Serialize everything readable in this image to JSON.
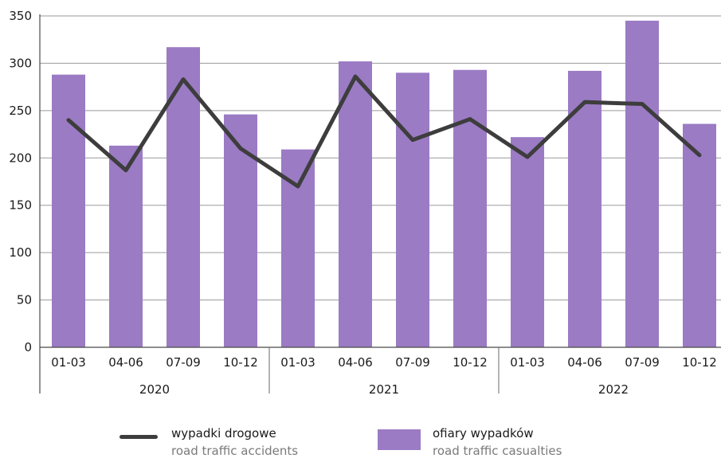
{
  "chart_data": {
    "type": "bar",
    "categories": [
      "01-03",
      "04-06",
      "07-09",
      "10-12",
      "01-03",
      "04-06",
      "07-09",
      "10-12",
      "01-03",
      "04-06",
      "07-09",
      "10-12"
    ],
    "groups": [
      {
        "label": "2020",
        "count": 4
      },
      {
        "label": "2021",
        "count": 4
      },
      {
        "label": "2022",
        "count": 4
      }
    ],
    "series": [
      {
        "name": "ofiary wypadków",
        "name_en": "road traffic casualties",
        "kind": "bar",
        "color": "#9b7bc4",
        "values": [
          288,
          213,
          317,
          246,
          209,
          302,
          290,
          293,
          222,
          292,
          345,
          236
        ]
      },
      {
        "name": "wypadki drogowe",
        "name_en": "road traffic accidents",
        "kind": "line",
        "color": "#3d3d3d",
        "values": [
          240,
          187,
          283,
          210,
          170,
          286,
          219,
          241,
          201,
          259,
          257,
          203
        ]
      }
    ],
    "yticks": [
      0,
      50,
      100,
      150,
      200,
      250,
      300,
      350
    ],
    "ylim": [
      0,
      350
    ],
    "grid": true,
    "legend_position": "bottom"
  },
  "legend": {
    "line_pl": "wypadki drogowe",
    "line_en": "road traffic accidents",
    "bar_pl": "ofiary wypadków",
    "bar_en": "road traffic casualties"
  }
}
